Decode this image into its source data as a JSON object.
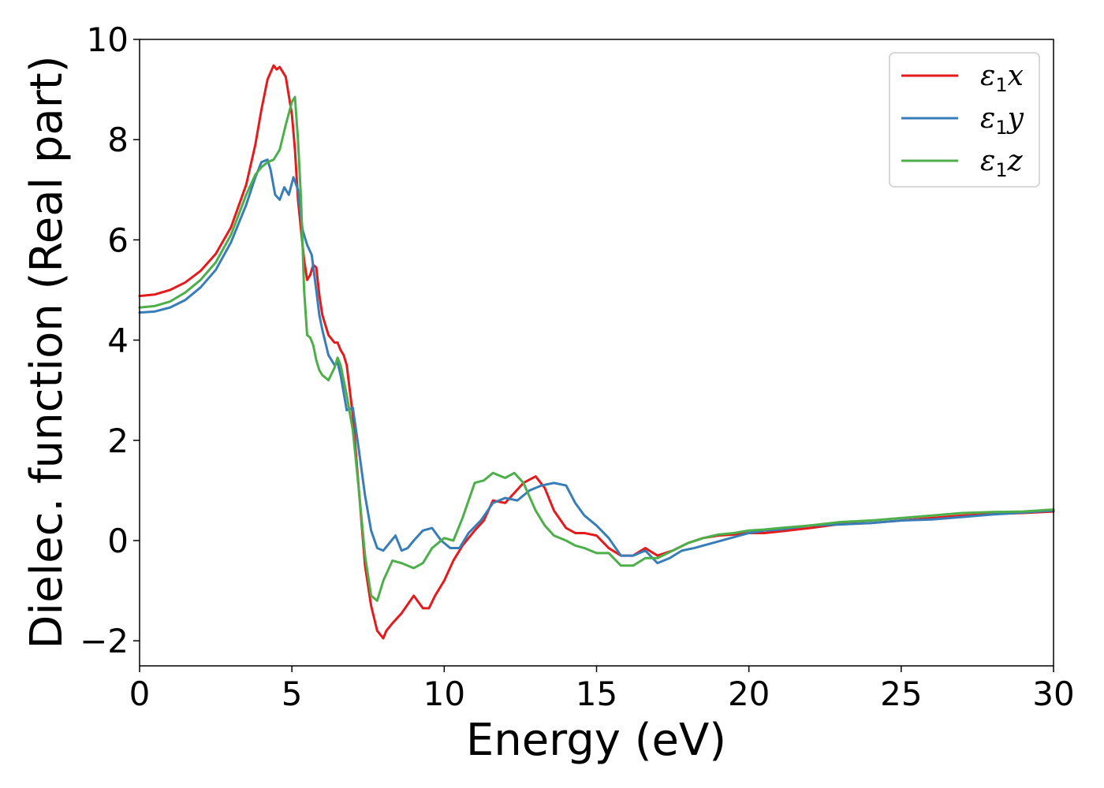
{
  "chart_data": {
    "type": "line",
    "title": "",
    "xlabel": "Energy (eV)",
    "ylabel": "Dielec. function (Real part)",
    "xlim": [
      0,
      30
    ],
    "ylim": [
      -2.5,
      10
    ],
    "xticks": [
      0,
      5,
      10,
      15,
      20,
      25,
      30
    ],
    "xtick_labels": [
      "0",
      "5",
      "10",
      "15",
      "20",
      "25",
      "30"
    ],
    "yticks": [
      -2,
      0,
      2,
      4,
      6,
      8,
      10
    ],
    "ytick_labels": [
      "−2",
      "0",
      "2",
      "4",
      "6",
      "8",
      "10"
    ],
    "grid": false,
    "legend_position": "top-right",
    "series": [
      {
        "name": "ε1x",
        "label_main": "ε",
        "label_sub": "1",
        "label_tail": "x",
        "color": "#e41a1c",
        "x": [
          0,
          0.5,
          1,
          1.5,
          2,
          2.5,
          3,
          3.5,
          3.8,
          4.0,
          4.2,
          4.4,
          4.5,
          4.6,
          4.7,
          4.8,
          5.0,
          5.1,
          5.2,
          5.3,
          5.4,
          5.5,
          5.6,
          5.7,
          5.8,
          5.9,
          6.0,
          6.2,
          6.4,
          6.5,
          6.6,
          6.7,
          6.8,
          7.0,
          7.2,
          7.4,
          7.6,
          7.8,
          8.0,
          8.1,
          8.3,
          8.6,
          9.0,
          9.3,
          9.5,
          9.7,
          10.0,
          10.3,
          10.6,
          11.0,
          11.3,
          11.6,
          12.0,
          12.3,
          12.6,
          13.0,
          13.3,
          13.6,
          14.0,
          14.3,
          14.6,
          15.0,
          15.4,
          15.8,
          16.2,
          16.6,
          17.0,
          17.5,
          18.0,
          18.5,
          19.0,
          19.5,
          20.0,
          20.5,
          21.0,
          22.0,
          23.0,
          24.0,
          25.0,
          26.0,
          27.0,
          28.0,
          29.0,
          30.0
        ],
        "y": [
          4.88,
          4.91,
          5.0,
          5.15,
          5.38,
          5.72,
          6.25,
          7.1,
          7.9,
          8.6,
          9.2,
          9.48,
          9.4,
          9.45,
          9.35,
          9.25,
          8.5,
          7.8,
          6.8,
          6.2,
          5.6,
          5.2,
          5.3,
          5.5,
          5.45,
          4.9,
          4.5,
          4.1,
          3.95,
          3.95,
          3.8,
          3.7,
          3.5,
          2.5,
          1.0,
          -0.5,
          -1.3,
          -1.8,
          -1.95,
          -1.8,
          -1.65,
          -1.45,
          -1.1,
          -1.35,
          -1.35,
          -1.1,
          -0.8,
          -0.4,
          -0.1,
          0.2,
          0.4,
          0.8,
          0.75,
          0.95,
          1.15,
          1.28,
          1.05,
          0.6,
          0.25,
          0.15,
          0.15,
          0.1,
          -0.15,
          -0.3,
          -0.3,
          -0.15,
          -0.3,
          -0.2,
          -0.05,
          0.05,
          0.1,
          0.12,
          0.15,
          0.15,
          0.18,
          0.25,
          0.33,
          0.35,
          0.4,
          0.45,
          0.5,
          0.53,
          0.55,
          0.58
        ]
      },
      {
        "name": "ε1y",
        "label_main": "ε",
        "label_sub": "1",
        "label_tail": "y",
        "color": "#377eb8",
        "x": [
          0,
          0.5,
          1,
          1.5,
          2,
          2.5,
          3,
          3.5,
          3.8,
          4.0,
          4.2,
          4.3,
          4.45,
          4.6,
          4.75,
          4.9,
          5.05,
          5.2,
          5.35,
          5.5,
          5.65,
          5.8,
          5.9,
          6.0,
          6.2,
          6.4,
          6.5,
          6.6,
          6.8,
          7.0,
          7.2,
          7.4,
          7.6,
          7.8,
          8.0,
          8.2,
          8.4,
          8.6,
          8.8,
          9.0,
          9.3,
          9.6,
          9.9,
          10.2,
          10.5,
          10.8,
          11.2,
          11.6,
          12.0,
          12.4,
          12.8,
          13.2,
          13.6,
          14.0,
          14.3,
          14.6,
          15.0,
          15.4,
          15.8,
          16.2,
          16.6,
          17.0,
          17.4,
          17.8,
          18.2,
          18.8,
          19.4,
          20.0,
          20.5,
          21.0,
          22.0,
          23.0,
          24.0,
          25.0,
          26.0,
          27.0,
          28.0,
          29.0,
          30.0
        ],
        "y": [
          4.55,
          4.57,
          4.65,
          4.8,
          5.05,
          5.4,
          5.95,
          6.7,
          7.25,
          7.55,
          7.6,
          7.4,
          6.9,
          6.8,
          7.05,
          6.9,
          7.25,
          7.0,
          6.2,
          5.9,
          5.7,
          5.0,
          4.5,
          4.2,
          3.7,
          3.5,
          3.55,
          3.3,
          2.6,
          2.65,
          1.8,
          0.9,
          0.2,
          -0.15,
          -0.2,
          -0.05,
          0.1,
          -0.2,
          -0.15,
          0.0,
          0.2,
          0.25,
          0.0,
          -0.15,
          -0.15,
          0.15,
          0.4,
          0.75,
          0.85,
          0.8,
          1.0,
          1.1,
          1.15,
          1.1,
          0.75,
          0.5,
          0.3,
          0.05,
          -0.3,
          -0.3,
          -0.2,
          -0.45,
          -0.35,
          -0.2,
          -0.15,
          -0.05,
          0.05,
          0.15,
          0.2,
          0.22,
          0.3,
          0.32,
          0.35,
          0.4,
          0.42,
          0.47,
          0.52,
          0.56,
          0.6
        ]
      },
      {
        "name": "ε1z",
        "label_main": "ε",
        "label_sub": "1",
        "label_tail": "z",
        "color": "#4daf4a",
        "x": [
          0,
          0.5,
          1,
          1.5,
          2,
          2.5,
          3,
          3.5,
          3.8,
          4.0,
          4.2,
          4.4,
          4.6,
          4.8,
          5.0,
          5.1,
          5.2,
          5.3,
          5.4,
          5.5,
          5.6,
          5.7,
          5.8,
          5.9,
          6.0,
          6.2,
          6.4,
          6.5,
          6.6,
          6.8,
          7.0,
          7.2,
          7.4,
          7.6,
          7.8,
          8.0,
          8.3,
          8.6,
          9.0,
          9.3,
          9.6,
          10.0,
          10.3,
          10.6,
          11.0,
          11.3,
          11.6,
          12.0,
          12.3,
          12.6,
          13.0,
          13.3,
          13.6,
          14.0,
          14.3,
          14.6,
          15.0,
          15.4,
          15.8,
          16.2,
          16.6,
          17.0,
          17.5,
          18.0,
          18.5,
          19.0,
          19.5,
          20.0,
          20.5,
          21.0,
          22.0,
          23.0,
          24.0,
          25.0,
          26.0,
          27.0,
          28.0,
          29.0,
          30.0
        ],
        "y": [
          4.65,
          4.68,
          4.77,
          4.95,
          5.2,
          5.55,
          6.1,
          6.9,
          7.3,
          7.45,
          7.55,
          7.6,
          7.8,
          8.3,
          8.75,
          8.85,
          8.0,
          6.8,
          5.0,
          4.1,
          4.05,
          3.9,
          3.6,
          3.4,
          3.3,
          3.2,
          3.45,
          3.65,
          3.5,
          2.9,
          2.2,
          1.0,
          -0.3,
          -1.1,
          -1.2,
          -0.8,
          -0.4,
          -0.45,
          -0.55,
          -0.45,
          -0.15,
          0.05,
          0.0,
          0.45,
          1.15,
          1.2,
          1.35,
          1.25,
          1.35,
          1.15,
          0.6,
          0.3,
          0.1,
          0.0,
          -0.1,
          -0.15,
          -0.25,
          -0.25,
          -0.5,
          -0.5,
          -0.35,
          -0.35,
          -0.2,
          -0.05,
          0.05,
          0.12,
          0.15,
          0.2,
          0.22,
          0.25,
          0.3,
          0.37,
          0.4,
          0.45,
          0.5,
          0.55,
          0.57,
          0.58,
          0.62
        ]
      }
    ]
  }
}
